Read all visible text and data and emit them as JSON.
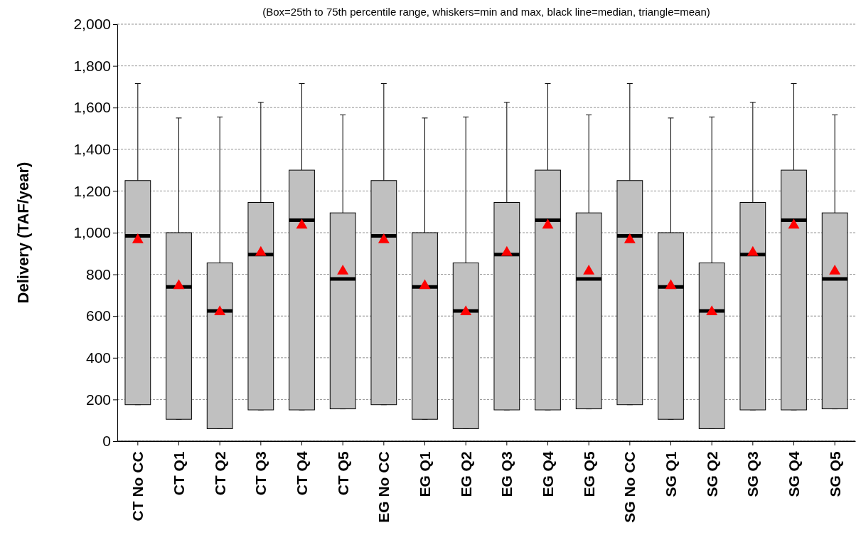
{
  "chart_data": {
    "type": "box",
    "title": "(Box=25th to 75th percentile range, whiskers=min and max, black line=median, triangle=mean)",
    "ylabel": "Delivery (TAF/year)",
    "categories": [
      "CT No CC",
      "CT Q1",
      "CT Q2",
      "CT Q3",
      "CT Q4",
      "CT Q5",
      "EG No CC",
      "EG Q1",
      "EG Q2",
      "EG Q3",
      "EG Q4",
      "EG Q5",
      "SG No CC",
      "SG Q1",
      "SG Q2",
      "SG Q3",
      "SG Q4",
      "SG Q5"
    ],
    "color": "#c0c0c0",
    "marker": "triangle",
    "grid": "y",
    "boxes": [
      {
        "low": 175,
        "q1": 175,
        "median": 985,
        "q3": 1250,
        "high": 1715,
        "mean": 965
      },
      {
        "low": 105,
        "q1": 105,
        "median": 740,
        "q3": 1000,
        "high": 1550,
        "mean": 745
      },
      {
        "low": 60,
        "q1": 60,
        "median": 625,
        "q3": 855,
        "high": 1555,
        "mean": 620
      },
      {
        "low": 150,
        "q1": 150,
        "median": 895,
        "q3": 1145,
        "high": 1625,
        "mean": 905
      },
      {
        "low": 150,
        "q1": 150,
        "median": 1060,
        "q3": 1300,
        "high": 1715,
        "mean": 1035
      },
      {
        "low": 155,
        "q1": 155,
        "median": 778,
        "q3": 1095,
        "high": 1565,
        "mean": 815
      },
      {
        "low": 175,
        "q1": 175,
        "median": 985,
        "q3": 1250,
        "high": 1715,
        "mean": 965
      },
      {
        "low": 105,
        "q1": 105,
        "median": 740,
        "q3": 1000,
        "high": 1550,
        "mean": 745
      },
      {
        "low": 60,
        "q1": 60,
        "median": 625,
        "q3": 855,
        "high": 1555,
        "mean": 620
      },
      {
        "low": 150,
        "q1": 150,
        "median": 895,
        "q3": 1145,
        "high": 1625,
        "mean": 905
      },
      {
        "low": 150,
        "q1": 150,
        "median": 1060,
        "q3": 1300,
        "high": 1715,
        "mean": 1035
      },
      {
        "low": 155,
        "q1": 155,
        "median": 778,
        "q3": 1095,
        "high": 1565,
        "mean": 815
      },
      {
        "low": 175,
        "q1": 175,
        "median": 985,
        "q3": 1250,
        "high": 1715,
        "mean": 965
      },
      {
        "low": 105,
        "q1": 105,
        "median": 740,
        "q3": 1000,
        "high": 1550,
        "mean": 745
      },
      {
        "low": 60,
        "q1": 60,
        "median": 625,
        "q3": 855,
        "high": 1555,
        "mean": 620
      },
      {
        "low": 150,
        "q1": 150,
        "median": 895,
        "q3": 1145,
        "high": 1625,
        "mean": 905
      },
      {
        "low": 150,
        "q1": 150,
        "median": 1060,
        "q3": 1300,
        "high": 1715,
        "mean": 1035
      },
      {
        "low": 155,
        "q1": 155,
        "median": 778,
        "q3": 1095,
        "high": 1565,
        "mean": 815
      }
    ],
    "ylim": [
      0,
      2000
    ],
    "yticks": [
      0,
      200,
      400,
      600,
      800,
      {
        "value": 1000,
        "label": "1,000"
      },
      {
        "value": 1200,
        "label": "1,200"
      },
      {
        "value": 1400,
        "label": "1,400"
      },
      {
        "value": 1600,
        "label": "1,600"
      },
      {
        "value": 1800,
        "label": "1,800"
      },
      {
        "value": 2000,
        "label": "2,000"
      }
    ]
  }
}
